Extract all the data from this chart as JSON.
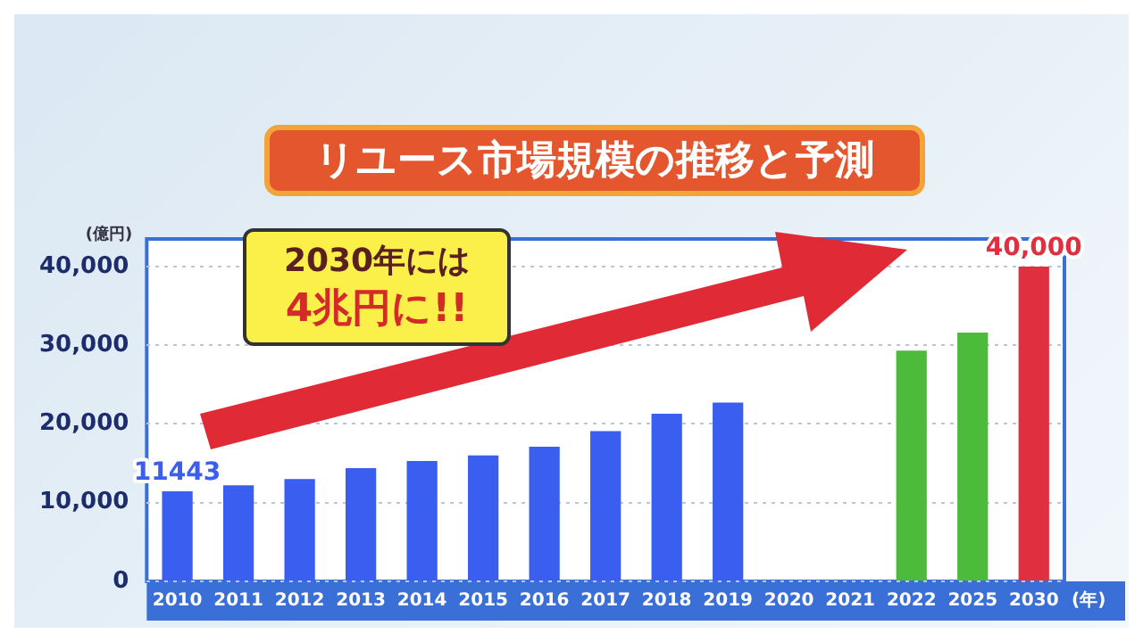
{
  "chart_data": {
    "type": "bar",
    "title": "リユース市場規模の推移と予測",
    "ylabel": "(億円)",
    "xlabel": "(年)",
    "categories": [
      "2010",
      "2011",
      "2012",
      "2013",
      "2014",
      "2015",
      "2016",
      "2017",
      "2018",
      "2019",
      "2020",
      "2021",
      "2022",
      "2025",
      "2030"
    ],
    "values": [
      11443,
      12200,
      13000,
      14400,
      15300,
      16000,
      17100,
      19100,
      21300,
      22700,
      null,
      null,
      29300,
      31600,
      40000
    ],
    "colors": [
      "#3a5ef0",
      "#3a5ef0",
      "#3a5ef0",
      "#3a5ef0",
      "#3a5ef0",
      "#3a5ef0",
      "#3a5ef0",
      "#3a5ef0",
      "#3a5ef0",
      "#3a5ef0",
      "#3a5ef0",
      "#3a5ef0",
      "#4cbb3c",
      "#4cbb3c",
      "#e03040"
    ],
    "value_labels": [
      "11443",
      null,
      null,
      null,
      null,
      null,
      null,
      null,
      null,
      null,
      null,
      null,
      null,
      null,
      "40,000"
    ],
    "ylim": [
      0,
      43500
    ],
    "yticks": [
      {
        "value": 0,
        "label": "0"
      },
      {
        "value": 10000,
        "label": "10,000"
      },
      {
        "value": 20000,
        "label": "20,000"
      },
      {
        "value": 30000,
        "label": "30,000"
      },
      {
        "value": 40000,
        "label": "40,000"
      }
    ],
    "grid": "y",
    "legend": false,
    "annotations": [
      "2030年には",
      "4兆円に!!"
    ]
  }
}
